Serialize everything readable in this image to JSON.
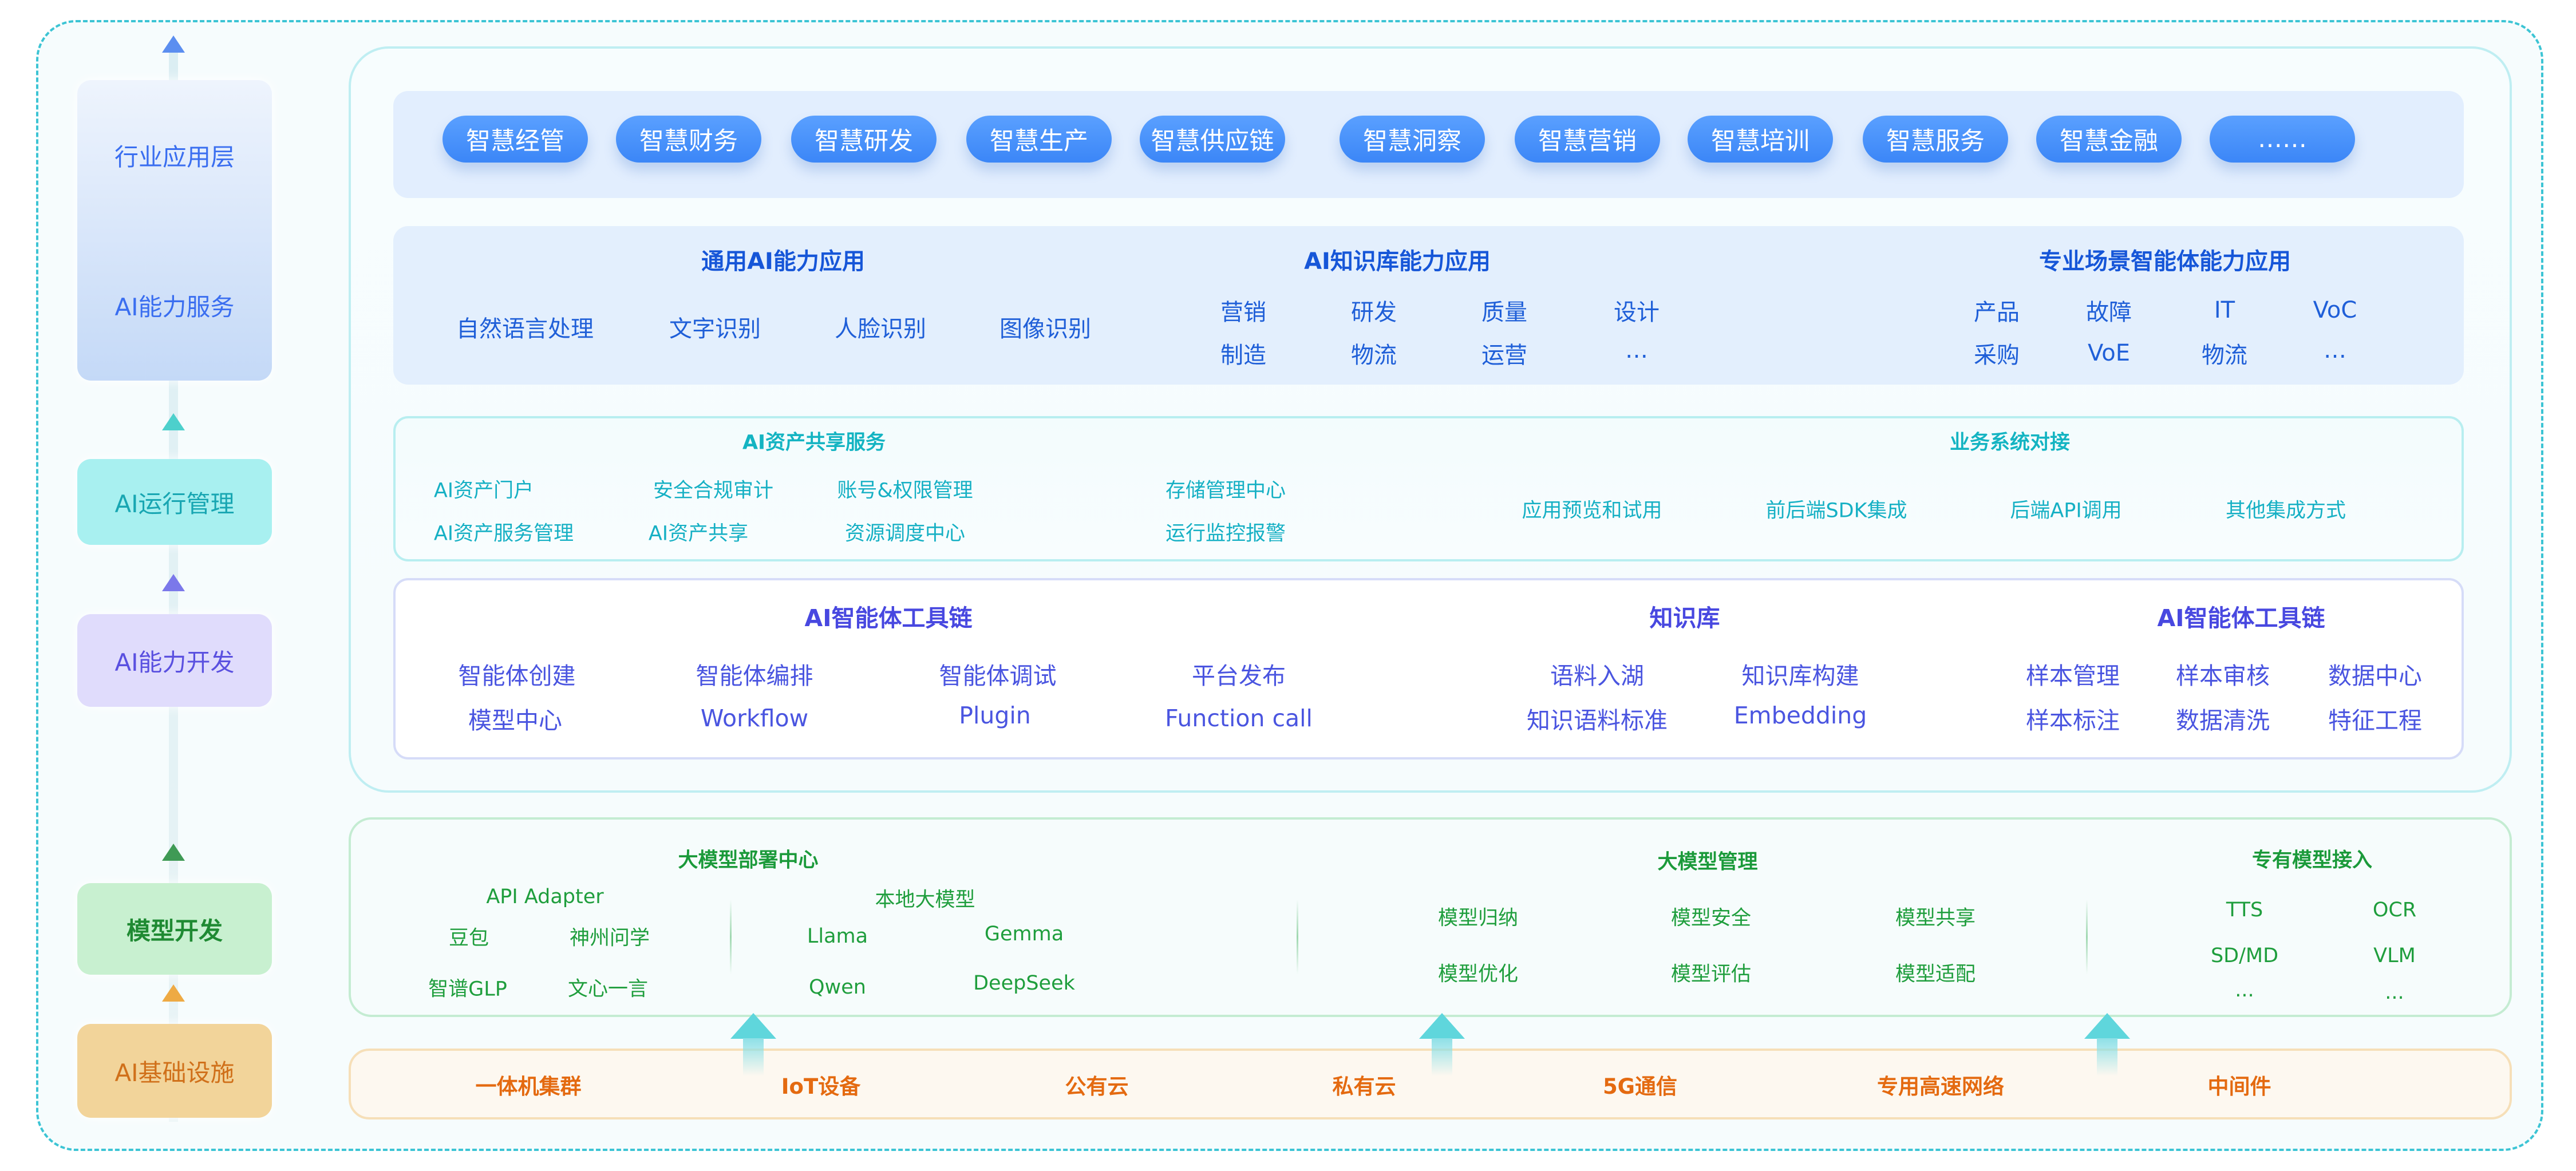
{
  "colors": {
    "outer_border": "#3cc4d4",
    "pill": "#3b86f7",
    "capability_text": "#1656d8",
    "share_text": "#14b4c2",
    "toolchain_text": "#4848e0",
    "model_text": "#1b9a3a",
    "infra_text": "#e46a10"
  },
  "layers": {
    "industry": "行业应用层",
    "ai_service": "AI能力服务",
    "ai_ops": "AI运行管理",
    "ai_dev": "AI能力开发",
    "model_dev": "模型开发",
    "infra": "AI基础设施"
  },
  "apps": [
    "智慧经管",
    "智慧财务",
    "智慧研发",
    "智慧生产",
    "智慧供应链",
    "智慧洞察",
    "智慧营销",
    "智慧培训",
    "智慧服务",
    "智慧金融",
    "……"
  ],
  "capabilities": {
    "general": {
      "title": "通用AI能力应用",
      "items": [
        "自然语言处理",
        "文字识别",
        "人脸识别",
        "图像识别"
      ]
    },
    "knowledge": {
      "title": "AI知识库能力应用",
      "items": [
        "营销",
        "研发",
        "质量",
        "设计",
        "制造",
        "物流",
        "运营",
        "…"
      ]
    },
    "scenario": {
      "title": "专业场景智能体能力应用",
      "items": [
        "产品",
        "故障",
        "IT",
        "VoC",
        "采购",
        "VoE",
        "物流",
        "…"
      ]
    }
  },
  "asset_share": {
    "title": "AI资产共享服务",
    "items": [
      "AI资产门户",
      "安全合规审计",
      "账号&权限管理",
      "存储管理中心",
      "AI资产服务管理",
      "AI资产共享",
      "资源调度中心",
      "运行监控报警"
    ]
  },
  "business": {
    "title": "业务系统对接",
    "items": [
      "应用预览和试用",
      "前后端SDK集成",
      "后端API调用",
      "其他集成方式"
    ]
  },
  "toolchain": {
    "title": "AI智能体工具链",
    "items": [
      "智能体创建",
      "智能体编排",
      "智能体调试",
      "平台发布",
      "模型中心",
      "Workflow",
      "Plugin",
      "Function call"
    ]
  },
  "kb": {
    "title": "知识库",
    "items": [
      "语料入湖",
      "知识库构建",
      "知识语料标准",
      "Embedding"
    ]
  },
  "toolchain2": {
    "title": "AI智能体工具链",
    "items": [
      "样本管理",
      "样本审核",
      "数据中心",
      "样本标注",
      "数据清洗",
      "特征工程"
    ]
  },
  "deploy": {
    "title": "大模型部署中心",
    "api_title": "API Adapter",
    "api_items": [
      "豆包",
      "神州问学",
      "智谱GLP",
      "文心一言"
    ],
    "local_title": "本地大模型",
    "local_items": [
      "Llama",
      "Gemma",
      "Qwen",
      "DeepSeek"
    ]
  },
  "mgmt": {
    "title": "大模型管理",
    "items": [
      "模型归纳",
      "模型安全",
      "模型共享",
      "模型优化",
      "模型评估",
      "模型适配"
    ]
  },
  "proprietary": {
    "title": "专有模型接入",
    "items": [
      "TTS",
      "OCR",
      "SD/MD",
      "VLM",
      "...",
      "..."
    ]
  },
  "infra": [
    "一体机集群",
    "IoT设备",
    "公有云",
    "私有云",
    "5G通信",
    "专用高速网络",
    "中间件"
  ]
}
